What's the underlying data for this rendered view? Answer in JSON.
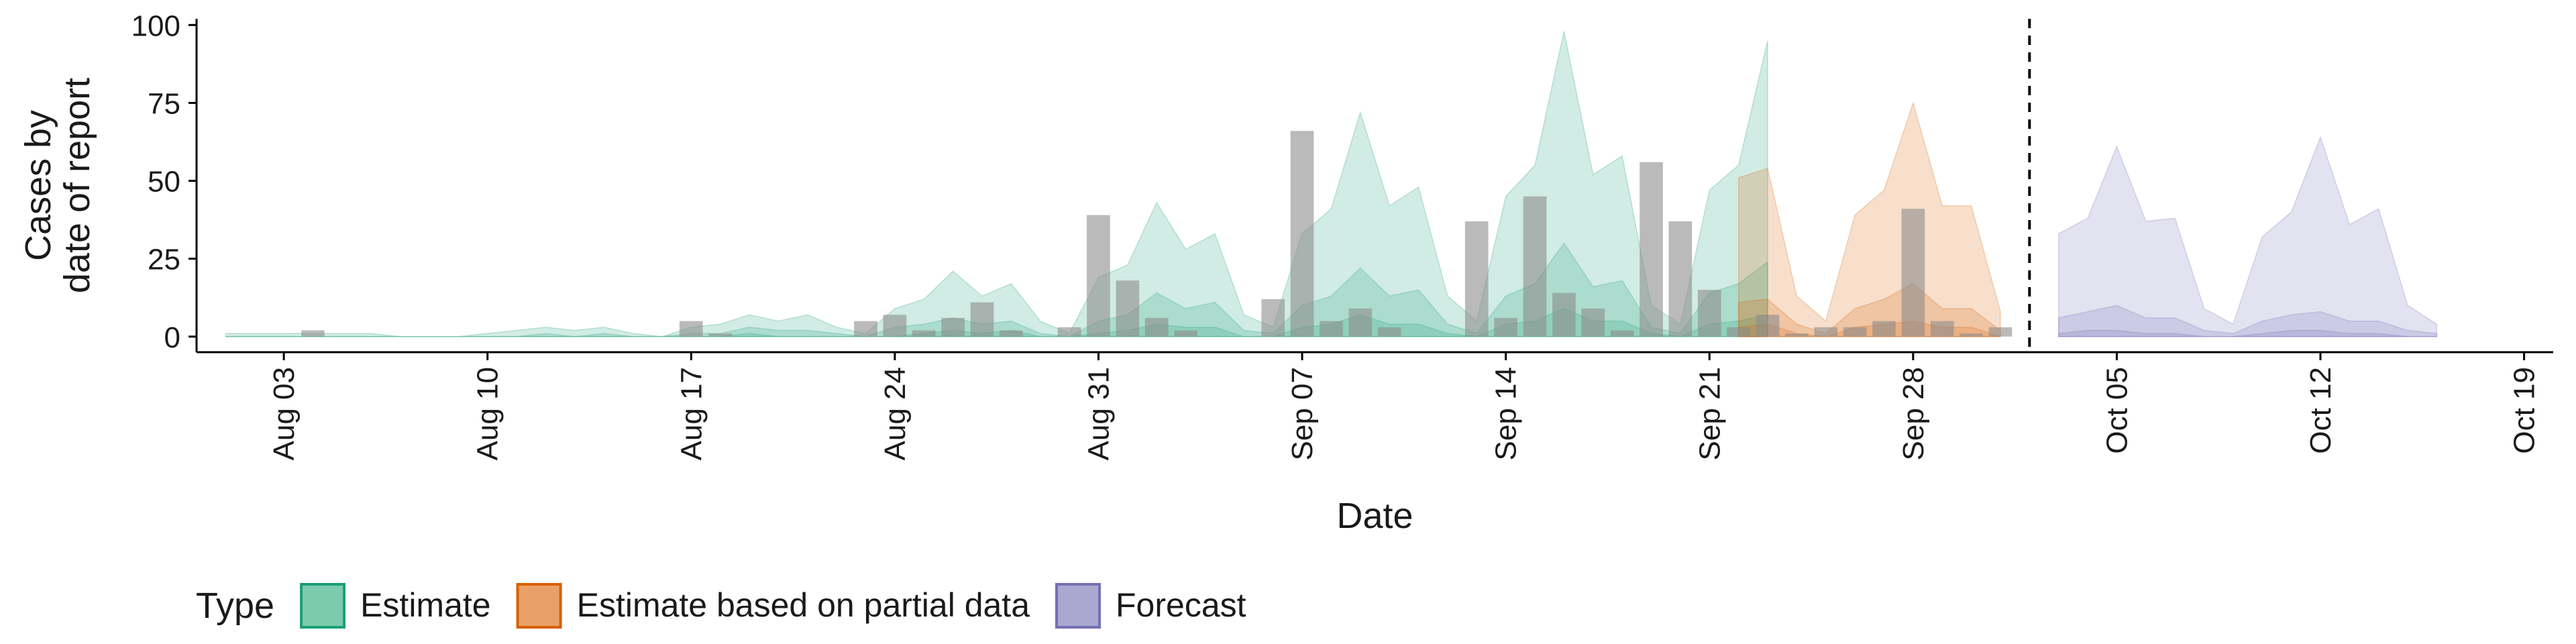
{
  "chart_data": {
    "type": "area",
    "xlabel": "Date",
    "ylabel_lines": [
      "Cases by",
      "date of report"
    ],
    "ylim": [
      -5,
      102
    ],
    "yticks": [
      0,
      25,
      50,
      75,
      100
    ],
    "x_start": "2020-07-31",
    "x_end": "2020-10-20",
    "xticks": [
      {
        "date": "2020-08-03",
        "label": "Aug 03"
      },
      {
        "date": "2020-08-10",
        "label": "Aug 10"
      },
      {
        "date": "2020-08-17",
        "label": "Aug 17"
      },
      {
        "date": "2020-08-24",
        "label": "Aug 24"
      },
      {
        "date": "2020-08-31",
        "label": "Aug 31"
      },
      {
        "date": "2020-09-07",
        "label": "Sep 07"
      },
      {
        "date": "2020-09-14",
        "label": "Sep 14"
      },
      {
        "date": "2020-09-21",
        "label": "Sep 21"
      },
      {
        "date": "2020-09-28",
        "label": "Sep 28"
      },
      {
        "date": "2020-10-05",
        "label": "Oct 05"
      },
      {
        "date": "2020-10-12",
        "label": "Oct 12"
      },
      {
        "date": "2020-10-19",
        "label": "Oct 19"
      }
    ],
    "forecast_line_date": "2020-10-02",
    "grid": false,
    "legend": {
      "position": "bottom",
      "title": "Type",
      "entries": [
        {
          "label": "Estimate",
          "fill": "#7ccbae",
          "stroke": "#1b9e77"
        },
        {
          "label": "Estimate based on partial data",
          "fill": "#e9a167",
          "stroke": "#d95f02"
        },
        {
          "label": "Forecast",
          "fill": "#aaa8d0",
          "stroke": "#7570b3"
        }
      ]
    },
    "series": [
      {
        "name": "Estimate",
        "color": "#1b9e77",
        "start_date": "2020-08-01",
        "upper90": [
          1,
          1,
          1,
          1,
          1,
          1,
          0,
          0,
          0,
          1,
          2,
          3,
          2,
          3,
          1,
          0,
          3,
          4,
          7,
          5,
          7,
          3,
          1,
          9,
          12,
          21,
          13,
          17,
          5,
          1,
          19,
          23,
          43,
          28,
          33,
          7,
          3,
          33,
          41,
          72,
          42,
          48,
          13,
          5,
          45,
          55,
          98,
          52,
          58,
          10,
          4,
          47,
          55,
          95
        ],
        "upper50": [
          0,
          0,
          0,
          0,
          0,
          0,
          0,
          0,
          0,
          0,
          0,
          1,
          0,
          1,
          0,
          0,
          1,
          1,
          3,
          2,
          2,
          1,
          0,
          3,
          4,
          6,
          4,
          5,
          1,
          0,
          5,
          7,
          14,
          9,
          11,
          2,
          1,
          10,
          13,
          22,
          13,
          15,
          4,
          1,
          13,
          17,
          30,
          16,
          18,
          3,
          1,
          14,
          17,
          24
        ],
        "upper20": [
          0,
          0,
          0,
          0,
          0,
          0,
          0,
          0,
          0,
          0,
          0,
          0,
          0,
          0,
          0,
          0,
          0,
          0,
          1,
          0,
          0,
          0,
          0,
          0,
          1,
          2,
          1,
          2,
          0,
          0,
          1,
          2,
          4,
          3,
          3,
          0,
          0,
          3,
          4,
          7,
          4,
          4,
          1,
          0,
          4,
          5,
          9,
          5,
          5,
          1,
          0,
          4,
          5,
          7
        ]
      },
      {
        "name": "Estimate based on partial data",
        "color": "#d95f02",
        "start_date": "2020-09-22",
        "upper90": [
          51,
          54,
          13,
          5,
          39,
          47,
          75,
          42,
          42,
          8
        ],
        "upper50": [
          11,
          12,
          4,
          1,
          9,
          12,
          17,
          9,
          9,
          2
        ],
        "upper20": [
          3,
          4,
          1,
          0,
          3,
          4,
          5,
          3,
          3,
          0
        ]
      },
      {
        "name": "Forecast",
        "color": "#7570b3",
        "start_date": "2020-10-03",
        "upper90": [
          33,
          38,
          61,
          37,
          38,
          9,
          4,
          32,
          40,
          64,
          36,
          41,
          10,
          4
        ],
        "upper50": [
          6,
          8,
          10,
          6,
          6,
          2,
          1,
          5,
          7,
          8,
          5,
          5,
          2,
          1
        ],
        "upper20": [
          1,
          2,
          2,
          1,
          1,
          0,
          0,
          1,
          2,
          2,
          1,
          1,
          0,
          0
        ]
      }
    ],
    "reported_cases": [
      {
        "date": "2020-08-04",
        "value": 2
      },
      {
        "date": "2020-08-17",
        "value": 5
      },
      {
        "date": "2020-08-18",
        "value": 1
      },
      {
        "date": "2020-08-23",
        "value": 5
      },
      {
        "date": "2020-08-24",
        "value": 7
      },
      {
        "date": "2020-08-25",
        "value": 2
      },
      {
        "date": "2020-08-26",
        "value": 6
      },
      {
        "date": "2020-08-27",
        "value": 11
      },
      {
        "date": "2020-08-28",
        "value": 2
      },
      {
        "date": "2020-08-30",
        "value": 3
      },
      {
        "date": "2020-08-31",
        "value": 39
      },
      {
        "date": "2020-09-01",
        "value": 18
      },
      {
        "date": "2020-09-02",
        "value": 6
      },
      {
        "date": "2020-09-03",
        "value": 2
      },
      {
        "date": "2020-09-06",
        "value": 12
      },
      {
        "date": "2020-09-07",
        "value": 66
      },
      {
        "date": "2020-09-08",
        "value": 5
      },
      {
        "date": "2020-09-09",
        "value": 9
      },
      {
        "date": "2020-09-10",
        "value": 3
      },
      {
        "date": "2020-09-13",
        "value": 37
      },
      {
        "date": "2020-09-14",
        "value": 6
      },
      {
        "date": "2020-09-15",
        "value": 45
      },
      {
        "date": "2020-09-16",
        "value": 14
      },
      {
        "date": "2020-09-17",
        "value": 9
      },
      {
        "date": "2020-09-18",
        "value": 2
      },
      {
        "date": "2020-09-19",
        "value": 56
      },
      {
        "date": "2020-09-20",
        "value": 37
      },
      {
        "date": "2020-09-21",
        "value": 15
      },
      {
        "date": "2020-09-22",
        "value": 3
      },
      {
        "date": "2020-09-23",
        "value": 7
      },
      {
        "date": "2020-09-24",
        "value": 1
      },
      {
        "date": "2020-09-25",
        "value": 3
      },
      {
        "date": "2020-09-26",
        "value": 3
      },
      {
        "date": "2020-09-27",
        "value": 5
      },
      {
        "date": "2020-09-28",
        "value": 41
      },
      {
        "date": "2020-09-29",
        "value": 5
      },
      {
        "date": "2020-09-30",
        "value": 1
      },
      {
        "date": "2020-10-01",
        "value": 3
      }
    ]
  }
}
